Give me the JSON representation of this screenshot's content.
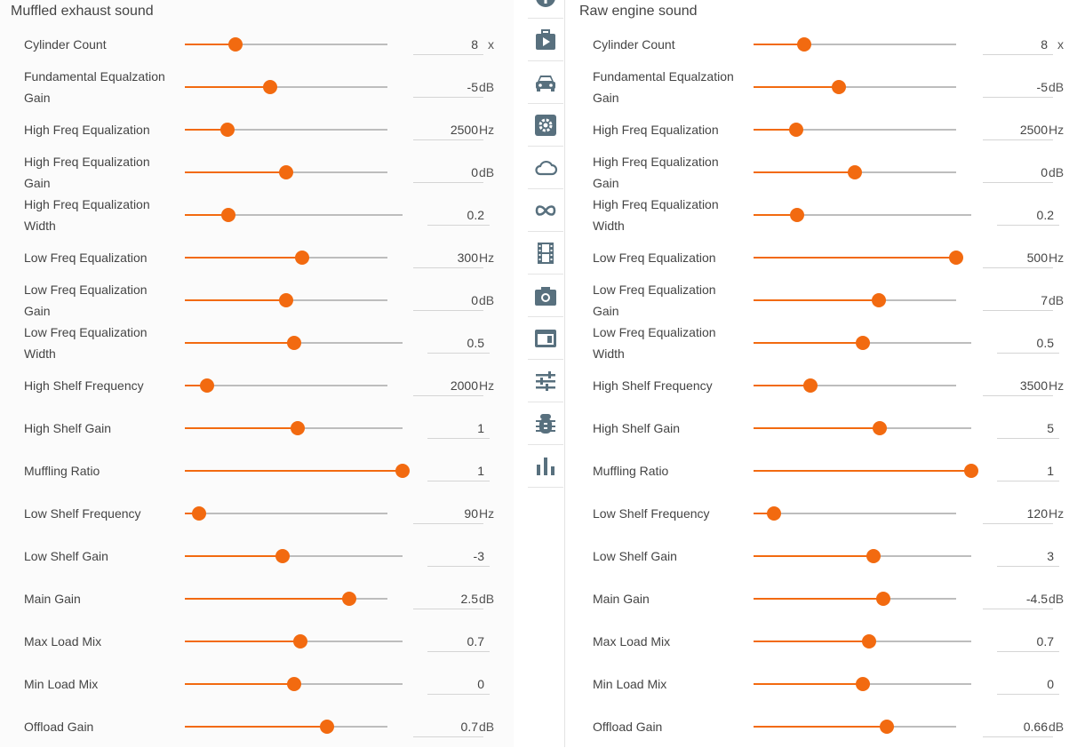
{
  "left_panel": {
    "title": "Muffled exhaust sound",
    "rows": [
      {
        "label": "Cylinder Count",
        "value": "8",
        "unit": "x",
        "fraction": 0.25,
        "wide": false
      },
      {
        "label": "Fundamental Equalzation Gain",
        "value": "-5",
        "unit": "dB",
        "fraction": 0.42,
        "wide": false
      },
      {
        "label": "High Freq Equalization",
        "value": "2500",
        "unit": "Hz",
        "fraction": 0.21,
        "wide": false
      },
      {
        "label": "High Freq Equalization Gain",
        "value": "0",
        "unit": "dB",
        "fraction": 0.5,
        "wide": false
      },
      {
        "label": "High Freq Equalization Width",
        "value": "0.2",
        "unit": "",
        "fraction": 0.2,
        "wide": true
      },
      {
        "label": "Low Freq Equalization",
        "value": "300",
        "unit": "Hz",
        "fraction": 0.58,
        "wide": false
      },
      {
        "label": "Low Freq Equalization Gain",
        "value": "0",
        "unit": "dB",
        "fraction": 0.5,
        "wide": false
      },
      {
        "label": "Low Freq Equalization Width",
        "value": "0.5",
        "unit": "",
        "fraction": 0.5,
        "wide": true
      },
      {
        "label": "High Shelf Frequency",
        "value": "2000",
        "unit": "Hz",
        "fraction": 0.11,
        "wide": false
      },
      {
        "label": "High Shelf Gain",
        "value": "1",
        "unit": "",
        "fraction": 0.52,
        "wide": true
      },
      {
        "label": "Muffling Ratio",
        "value": "1",
        "unit": "",
        "fraction": 1.0,
        "wide": true
      },
      {
        "label": "Low Shelf Frequency",
        "value": "90",
        "unit": "Hz",
        "fraction": 0.07,
        "wide": false
      },
      {
        "label": "Low Shelf Gain",
        "value": "-3",
        "unit": "",
        "fraction": 0.45,
        "wide": true
      },
      {
        "label": "Main Gain",
        "value": "2.5",
        "unit": "dB",
        "fraction": 0.81,
        "wide": false
      },
      {
        "label": "Max Load Mix",
        "value": "0.7",
        "unit": "",
        "fraction": 0.53,
        "wide": true
      },
      {
        "label": "Min Load Mix",
        "value": "0",
        "unit": "",
        "fraction": 0.5,
        "wide": true
      },
      {
        "label": "Offload Gain",
        "value": "0.7",
        "unit": "dB",
        "fraction": 0.7,
        "wide": false
      }
    ]
  },
  "right_panel": {
    "title": "Raw engine sound",
    "rows": [
      {
        "label": "Cylinder Count",
        "value": "8",
        "unit": "x",
        "fraction": 0.25,
        "wide": false
      },
      {
        "label": "Fundamental Equalzation Gain",
        "value": "-5",
        "unit": "dB",
        "fraction": 0.42,
        "wide": false
      },
      {
        "label": "High Freq Equalization",
        "value": "2500",
        "unit": "Hz",
        "fraction": 0.21,
        "wide": false
      },
      {
        "label": "High Freq Equalization Gain",
        "value": "0",
        "unit": "dB",
        "fraction": 0.5,
        "wide": false
      },
      {
        "label": "High Freq Equalization Width",
        "value": "0.2",
        "unit": "",
        "fraction": 0.2,
        "wide": true
      },
      {
        "label": "Low Freq Equalization",
        "value": "500",
        "unit": "Hz",
        "fraction": 1.0,
        "wide": false
      },
      {
        "label": "Low Freq Equalization Gain",
        "value": "7",
        "unit": "dB",
        "fraction": 0.62,
        "wide": false
      },
      {
        "label": "Low Freq Equalization Width",
        "value": "0.5",
        "unit": "",
        "fraction": 0.5,
        "wide": true
      },
      {
        "label": "High Shelf Frequency",
        "value": "3500",
        "unit": "Hz",
        "fraction": 0.28,
        "wide": false
      },
      {
        "label": "High Shelf Gain",
        "value": "5",
        "unit": "",
        "fraction": 0.58,
        "wide": true
      },
      {
        "label": "Muffling Ratio",
        "value": "1",
        "unit": "",
        "fraction": 1.0,
        "wide": true
      },
      {
        "label": "Low Shelf Frequency",
        "value": "120",
        "unit": "Hz",
        "fraction": 0.1,
        "wide": false
      },
      {
        "label": "Low Shelf Gain",
        "value": "3",
        "unit": "",
        "fraction": 0.55,
        "wide": true
      },
      {
        "label": "Main Gain",
        "value": "-4.5",
        "unit": "dB",
        "fraction": 0.64,
        "wide": false
      },
      {
        "label": "Max Load Mix",
        "value": "0.7",
        "unit": "",
        "fraction": 0.53,
        "wide": true
      },
      {
        "label": "Min Load Mix",
        "value": "0",
        "unit": "",
        "fraction": 0.5,
        "wide": true
      },
      {
        "label": "Offload Gain",
        "value": "0.66",
        "unit": "dB",
        "fraction": 0.66,
        "wide": false
      }
    ]
  },
  "sidebar": {
    "icons": [
      "info-icon",
      "play-icon",
      "car-icon",
      "gear-icon",
      "cloud-icon",
      "infinity-icon",
      "film-icon",
      "camera-icon",
      "layout-icon",
      "sliders-icon",
      "bug-icon",
      "bar-chart-icon"
    ]
  },
  "colors": {
    "accent": "#f26a10",
    "track": "#bdbdbd",
    "icon": "#58707e"
  }
}
